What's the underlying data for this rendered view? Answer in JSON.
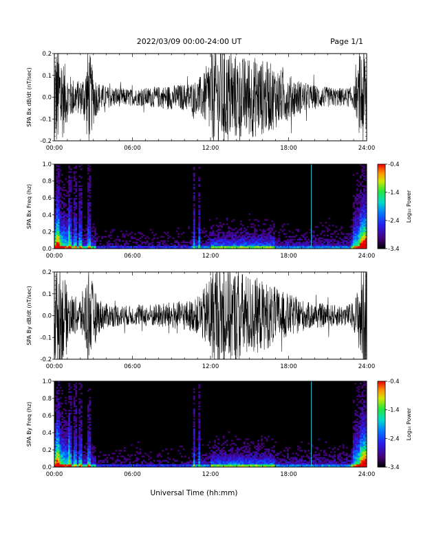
{
  "header": {
    "title": "2022/03/09  00:00-24:00 UT",
    "page": "Page 1/1"
  },
  "x_axis": {
    "title": "Universal Time (hh:mm)",
    "ticks": [
      "00:00",
      "06:00",
      "12:00",
      "18:00",
      "24:00"
    ],
    "tick_hours": [
      0,
      6,
      12,
      18,
      24
    ],
    "range_hours": [
      0,
      24
    ]
  },
  "chart_data": [
    {
      "type": "line",
      "ylabel": "SPA Bx dB/dt (nT/sec)",
      "ylim": [
        -0.2,
        0.2
      ],
      "yticks": [
        -0.2,
        -0.1,
        0.0,
        0.1,
        0.2
      ],
      "ytick_labels": [
        "-0.2",
        "-0.1",
        "0.0",
        "0.1",
        "0.2"
      ],
      "color": "#000000",
      "amplitude_envelope": {
        "hours": [
          0,
          0.3,
          0.6,
          1.0,
          1.5,
          2.0,
          2.4,
          2.6,
          2.9,
          3.3,
          4,
          5,
          6,
          7,
          8,
          9,
          10,
          10.8,
          11.5,
          12,
          12.5,
          13.5,
          14.5,
          15.5,
          16.5,
          17.5,
          18.5,
          19.5,
          20.5,
          21.5,
          22.5,
          23.0,
          23.3,
          23.6,
          24
        ],
        "amplitude": [
          0.2,
          0.2,
          0.16,
          0.09,
          0.07,
          0.06,
          0.11,
          0.2,
          0.12,
          0.06,
          0.04,
          0.035,
          0.03,
          0.035,
          0.04,
          0.045,
          0.05,
          0.06,
          0.09,
          0.16,
          0.2,
          0.17,
          0.15,
          0.15,
          0.13,
          0.1,
          0.07,
          0.05,
          0.04,
          0.035,
          0.035,
          0.04,
          0.09,
          0.2,
          0.2
        ]
      }
    },
    {
      "type": "heatmap",
      "ylabel": "SPA Bx Freq (hz)",
      "ylim": [
        0.0,
        1.0
      ],
      "yticks": [
        0.0,
        0.2,
        0.4,
        0.6,
        0.8,
        1.0
      ],
      "ytick_labels": [
        "0.0",
        "0.2",
        "0.4",
        "0.6",
        "0.8",
        "1.0"
      ],
      "vertical_line_hour": 19.75,
      "vertical_line_color": "#27c6df",
      "colorbar": {
        "label": "Log₁₀ Power",
        "range": [
          -3.4,
          -0.4
        ],
        "ticks": [
          "-0.4",
          "-1.4",
          "-2.4",
          "-3.4"
        ]
      }
    },
    {
      "type": "line",
      "ylabel": "SPA By dB/dt (nT/sec)",
      "ylim": [
        -0.2,
        0.2
      ],
      "yticks": [
        -0.2,
        -0.1,
        0.0,
        0.1,
        0.2
      ],
      "ytick_labels": [
        "-0.2",
        "-0.1",
        "0.0",
        "0.1",
        "0.2"
      ],
      "color": "#000000",
      "amplitude_envelope": {
        "hours": [
          0,
          0.3,
          0.6,
          1.0,
          1.5,
          2.0,
          2.4,
          2.6,
          2.9,
          3.3,
          4,
          5,
          6,
          7,
          8,
          9,
          10,
          10.8,
          11.5,
          12,
          12.5,
          13.5,
          14.5,
          15.5,
          16.5,
          17.5,
          18.5,
          19.5,
          20.5,
          21.5,
          22.5,
          23.0,
          23.3,
          23.6,
          24
        ],
        "amplitude": [
          0.2,
          0.2,
          0.18,
          0.1,
          0.07,
          0.07,
          0.12,
          0.2,
          0.13,
          0.07,
          0.045,
          0.04,
          0.035,
          0.04,
          0.045,
          0.05,
          0.055,
          0.06,
          0.1,
          0.17,
          0.2,
          0.18,
          0.16,
          0.14,
          0.12,
          0.09,
          0.07,
          0.05,
          0.045,
          0.04,
          0.04,
          0.05,
          0.1,
          0.2,
          0.2
        ]
      }
    },
    {
      "type": "heatmap",
      "ylabel": "SPA By Freq (hz)",
      "ylim": [
        0.0,
        1.0
      ],
      "yticks": [
        0.0,
        0.2,
        0.4,
        0.6,
        0.8,
        1.0
      ],
      "ytick_labels": [
        "0.0",
        "0.2",
        "0.4",
        "0.6",
        "0.8",
        "1.0"
      ],
      "vertical_line_hour": 19.75,
      "vertical_line_color": "#27c6df",
      "colorbar": {
        "label": "Log₁₀ Power",
        "range": [
          -3.4,
          -0.4
        ],
        "ticks": [
          "-0.4",
          "-1.4",
          "-2.4",
          "-3.4"
        ]
      }
    }
  ]
}
